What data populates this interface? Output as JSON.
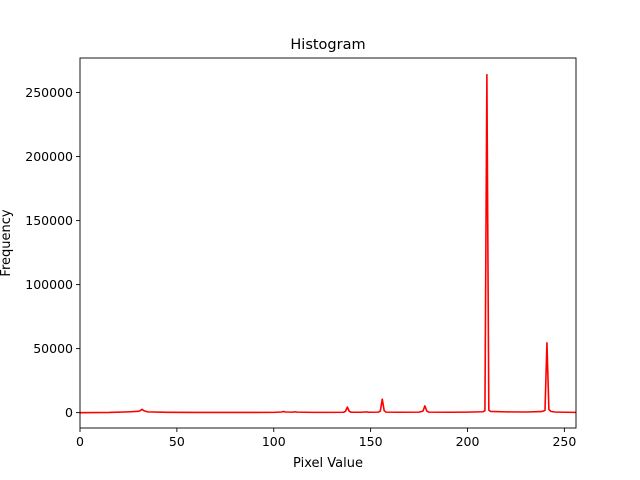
{
  "chart_data": {
    "type": "line",
    "title": "Histogram",
    "xlabel": "Pixel Value",
    "ylabel": "Frequency",
    "xlim": [
      0,
      256
    ],
    "ylim": [
      -12000,
      277000
    ],
    "xticks": [
      0,
      50,
      100,
      150,
      200,
      250
    ],
    "yticks": [
      0,
      50000,
      100000,
      150000,
      200000,
      250000
    ],
    "grid": false,
    "legend": "none",
    "series": [
      {
        "color": "#ff0000",
        "points": [
          [
            0,
            0
          ],
          [
            15,
            150
          ],
          [
            25,
            600
          ],
          [
            30,
            1000
          ],
          [
            31,
            1500
          ],
          [
            32,
            2600
          ],
          [
            33,
            1500
          ],
          [
            35,
            600
          ],
          [
            45,
            250
          ],
          [
            60,
            150
          ],
          [
            80,
            120
          ],
          [
            100,
            200
          ],
          [
            104,
            500
          ],
          [
            105,
            900
          ],
          [
            106,
            500
          ],
          [
            110,
            400
          ],
          [
            111,
            700
          ],
          [
            112,
            400
          ],
          [
            120,
            200
          ],
          [
            130,
            200
          ],
          [
            136,
            300
          ],
          [
            137,
            1000
          ],
          [
            138,
            4300
          ],
          [
            139,
            1000
          ],
          [
            140,
            300
          ],
          [
            145,
            300
          ],
          [
            148,
            600
          ],
          [
            149,
            300
          ],
          [
            154,
            400
          ],
          [
            155,
            1200
          ],
          [
            156,
            10500
          ],
          [
            157,
            1500
          ],
          [
            158,
            400
          ],
          [
            165,
            300
          ],
          [
            175,
            400
          ],
          [
            177,
            1200
          ],
          [
            178,
            5300
          ],
          [
            179,
            1200
          ],
          [
            180,
            400
          ],
          [
            190,
            300
          ],
          [
            200,
            400
          ],
          [
            208,
            700
          ],
          [
            209,
            1500
          ],
          [
            210,
            264000
          ],
          [
            211,
            2000
          ],
          [
            212,
            900
          ],
          [
            220,
            600
          ],
          [
            230,
            500
          ],
          [
            238,
            800
          ],
          [
            239,
            1200
          ],
          [
            240,
            1800
          ],
          [
            241,
            54500
          ],
          [
            242,
            2500
          ],
          [
            243,
            1000
          ],
          [
            245,
            500
          ],
          [
            250,
            300
          ],
          [
            256,
            200
          ]
        ]
      }
    ]
  }
}
